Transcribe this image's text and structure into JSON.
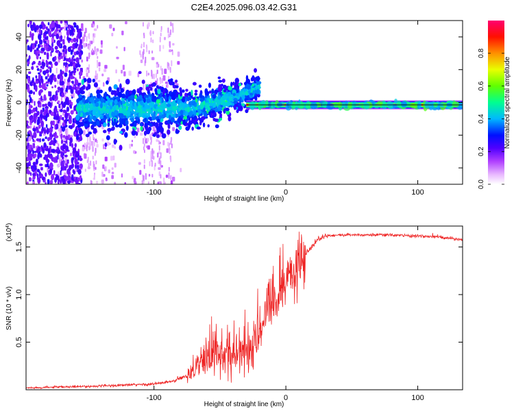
{
  "page": {
    "title": "C2E4.2025.096.03.42.G31"
  },
  "chart_data": [
    {
      "type": "heatmap",
      "id": "spectrogram",
      "xlabel": "Height of straight line (km)",
      "ylabel": "Frequency (Hz)",
      "xlim": [
        -197,
        134
      ],
      "ylim": [
        -50,
        50
      ],
      "x_ticks": [
        -100,
        0,
        100
      ],
      "x_tick_labels": [
        "-100",
        "0",
        "100"
      ],
      "y_ticks": [
        -40,
        -20,
        0,
        20,
        40
      ],
      "y_tick_labels": [
        "-40",
        "-20",
        "0",
        "20",
        "40"
      ],
      "colorbar": {
        "label": "Normalized spectral amplitude",
        "range": [
          0,
          1
        ],
        "ticks": [
          0.0,
          0.2,
          0.4,
          0.6,
          0.8
        ],
        "tick_labels": [
          "0.0",
          "0.2",
          "0.4",
          "0.6",
          "0.8"
        ],
        "colormap": [
          "#ffffff",
          "#d070ff",
          "#6000ff",
          "#0000ff",
          "#00c8ff",
          "#00ff80",
          "#80ff00",
          "#ffff00",
          "#ff8000",
          "#ff0000",
          "#ff0060"
        ]
      },
      "features": {
        "noise_region_x": [
          -197,
          -80
        ],
        "carrier_start_x": -30,
        "carrier_freq": -1.5,
        "carrier_end_x": 134
      }
    },
    {
      "type": "line",
      "id": "snr",
      "xlabel": "Height of straight line (km)",
      "ylabel": "SNR (10 * v/v)",
      "y_multiplier_label": "(x10",
      "y_multiplier_exp": "4",
      "y_multiplier_close": ")",
      "xlim": [
        -197,
        134
      ],
      "ylim": [
        0,
        17200
      ],
      "x_ticks": [
        -100,
        0,
        100
      ],
      "x_tick_labels": [
        "-100",
        "0",
        "100"
      ],
      "y_ticks": [
        5000,
        10000,
        15000
      ],
      "y_tick_labels": [
        "0.5",
        "1.0",
        "1.5"
      ],
      "series": [
        {
          "name": "SNR",
          "color": "#ee2222",
          "profile": [
            [
              -197,
              200
            ],
            [
              -150,
              350
            ],
            [
              -100,
              600
            ],
            [
              -85,
              900
            ],
            [
              -75,
              1500
            ],
            [
              -65,
              3000
            ],
            [
              -55,
              3800
            ],
            [
              -45,
              3400
            ],
            [
              -35,
              3600
            ],
            [
              -25,
              4500
            ],
            [
              -20,
              6000
            ],
            [
              -15,
              8000
            ],
            [
              -10,
              9000
            ],
            [
              -5,
              10000
            ],
            [
              0,
              11000
            ],
            [
              5,
              12300
            ],
            [
              10,
              13300
            ],
            [
              15,
              14300
            ],
            [
              20,
              15200
            ],
            [
              25,
              15900
            ],
            [
              30,
              16200
            ],
            [
              50,
              16300
            ],
            [
              80,
              16250
            ],
            [
              100,
              16150
            ],
            [
              115,
              16050
            ],
            [
              134,
              15800
            ]
          ]
        }
      ]
    }
  ]
}
